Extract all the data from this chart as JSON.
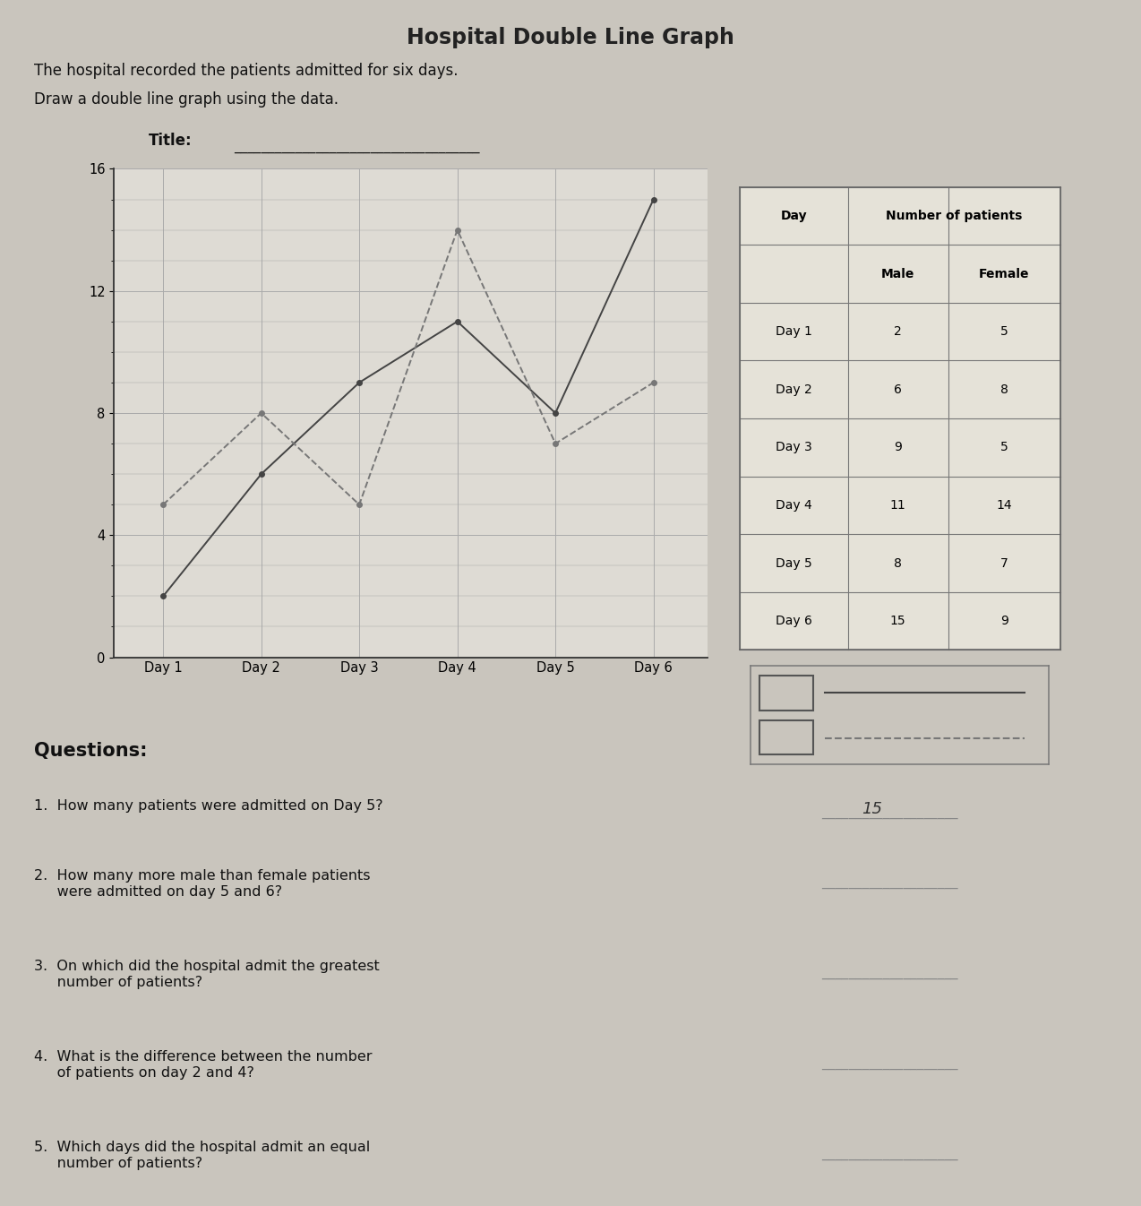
{
  "title_page": "Hospital Double Line Graph",
  "description_line1": "The hospital recorded the patients admitted for six days.",
  "description_line2": "Draw a double line graph using the data.",
  "title_label": "Title:",
  "days": [
    "Day 1",
    "Day 2",
    "Day 3",
    "Day 4",
    "Day 5",
    "Day 6"
  ],
  "male": [
    2,
    6,
    9,
    11,
    8,
    15
  ],
  "female": [
    5,
    8,
    5,
    14,
    7,
    9
  ],
  "ylim": [
    0,
    16
  ],
  "yticks": [
    0,
    4,
    8,
    12,
    16
  ],
  "page_color": "#c9c5bd",
  "graph_bg": "#dedbd4",
  "grid_color": "#aaaaaa",
  "male_color": "#444444",
  "female_color": "#777777",
  "table_data": [
    [
      "Day 1",
      "2",
      "5"
    ],
    [
      "Day 2",
      "6",
      "8"
    ],
    [
      "Day 3",
      "9",
      "5"
    ],
    [
      "Day 4",
      "11",
      "14"
    ],
    [
      "Day 5",
      "8",
      "7"
    ],
    [
      "Day 6",
      "15",
      "9"
    ]
  ],
  "questions_title": "Questions:",
  "questions": [
    "1.  How many patients were admitted on Day 5?",
    "2.  How many more male than female patients\n     were admitted on day 5 and 6?",
    "3.  On which did the hospital admit the greatest\n     number of patients?",
    "4.  What is the difference between the number\n     of patients on day 2 and 4?",
    "5.  Which days did the hospital admit an equal\n     number of patients?"
  ],
  "answer_1": "15"
}
